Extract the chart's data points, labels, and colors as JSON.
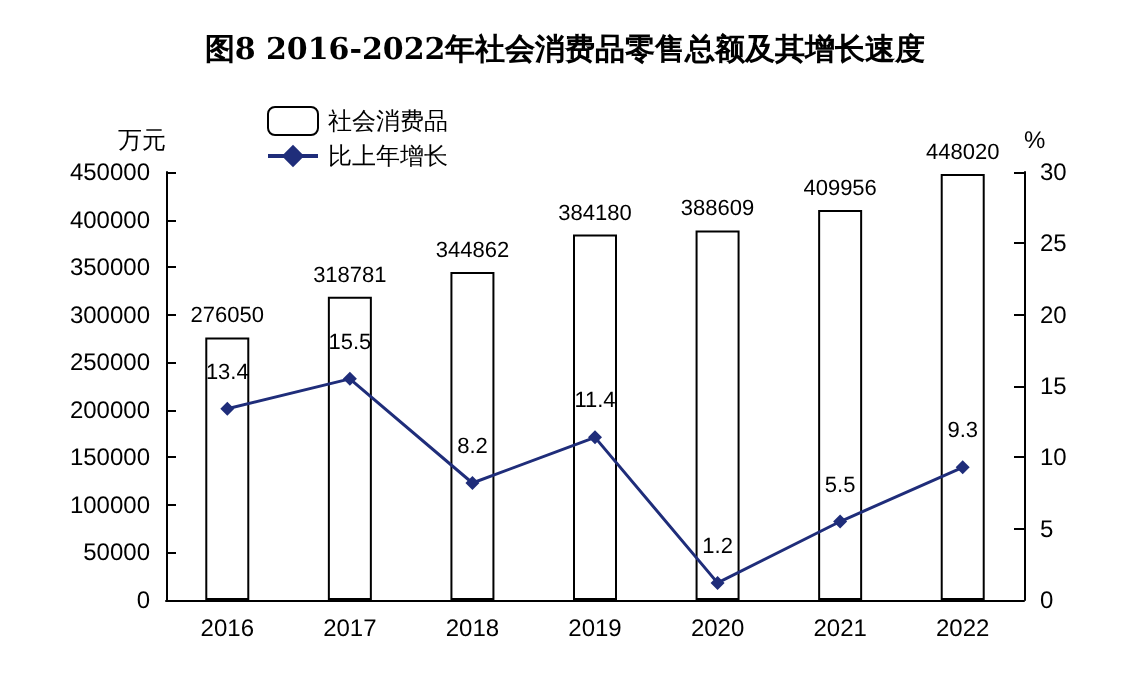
{
  "chart_data": {
    "type": "bar",
    "title": "图8 2016-2022年社会消费品零售总额及其增长速度",
    "ylabel": "万元",
    "y2label": "%",
    "categories": [
      "2016",
      "2017",
      "2018",
      "2019",
      "2020",
      "2021",
      "2022"
    ],
    "series": [
      {
        "name": "社会消费品",
        "color": "#ffffff",
        "values": [
          276050,
          318781,
          344862,
          384180,
          388609,
          409956,
          448020
        ]
      },
      {
        "name": "比上年增长",
        "type": "line",
        "axis": "y2",
        "color": "#1f2d7a",
        "marker": "diamond",
        "values": [
          13.4,
          15.5,
          8.2,
          11.4,
          1.2,
          5.5,
          9.3
        ]
      }
    ],
    "ylim": [
      0,
      450000
    ],
    "yticks": [
      0,
      50000,
      100000,
      150000,
      200000,
      250000,
      300000,
      350000,
      400000,
      450000
    ],
    "y2lim": [
      0,
      30
    ],
    "y2ticks": [
      0,
      5,
      10,
      15,
      20,
      25,
      30
    ],
    "data_labels": true,
    "legend": "top"
  }
}
